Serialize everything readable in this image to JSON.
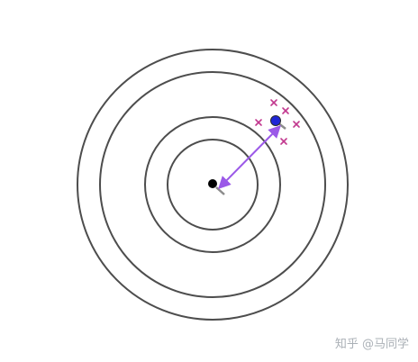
{
  "watermark": "知乎 @马同学",
  "colors": {
    "ring": "#4d4d4d",
    "center_dot": "#000000",
    "blue_dot": "#1f26d6",
    "blue_dot_outline": "#2b2b2b",
    "arrow": "#9b59e8",
    "tick": "#8c8c8c",
    "cross": "#c2398f"
  },
  "icons": {
    "center": "center-dot",
    "target_point": "blue-dot",
    "samples": "cross-mark"
  }
}
